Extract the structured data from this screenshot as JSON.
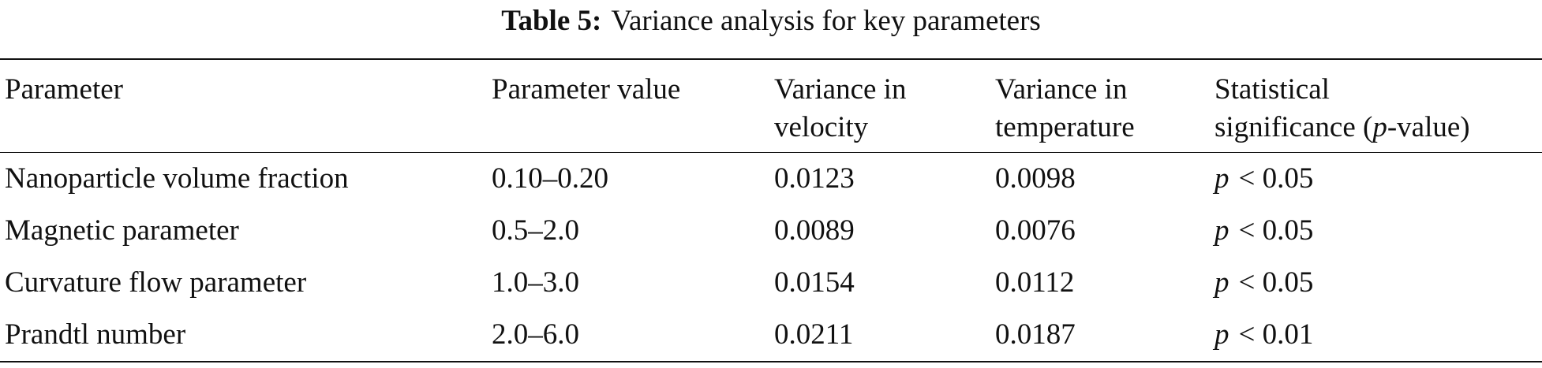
{
  "caption": {
    "label": "Table 5:",
    "text": "Variance analysis for key parameters"
  },
  "table": {
    "header": [
      "Parameter",
      "Parameter value",
      [
        "Variance in",
        "velocity"
      ],
      [
        "Variance in",
        "temperature"
      ],
      [
        "Statistical",
        "significance (",
        "p",
        "-value)"
      ]
    ],
    "rows": [
      [
        "Nanoparticle volume fraction",
        "0.10–0.20",
        "0.0123",
        "0.0098",
        [
          "p",
          "< 0.05"
        ]
      ],
      [
        "Magnetic parameter",
        "0.5–2.0",
        "0.0089",
        "0.0076",
        [
          "p",
          "< 0.05"
        ]
      ],
      [
        "Curvature flow parameter",
        "1.0–3.0",
        "0.0154",
        "0.0112",
        [
          "p",
          "< 0.05"
        ]
      ],
      [
        "Prandtl number",
        "2.0–6.0",
        "0.0211",
        "0.0187",
        [
          "p",
          "< 0.01"
        ]
      ]
    ]
  }
}
